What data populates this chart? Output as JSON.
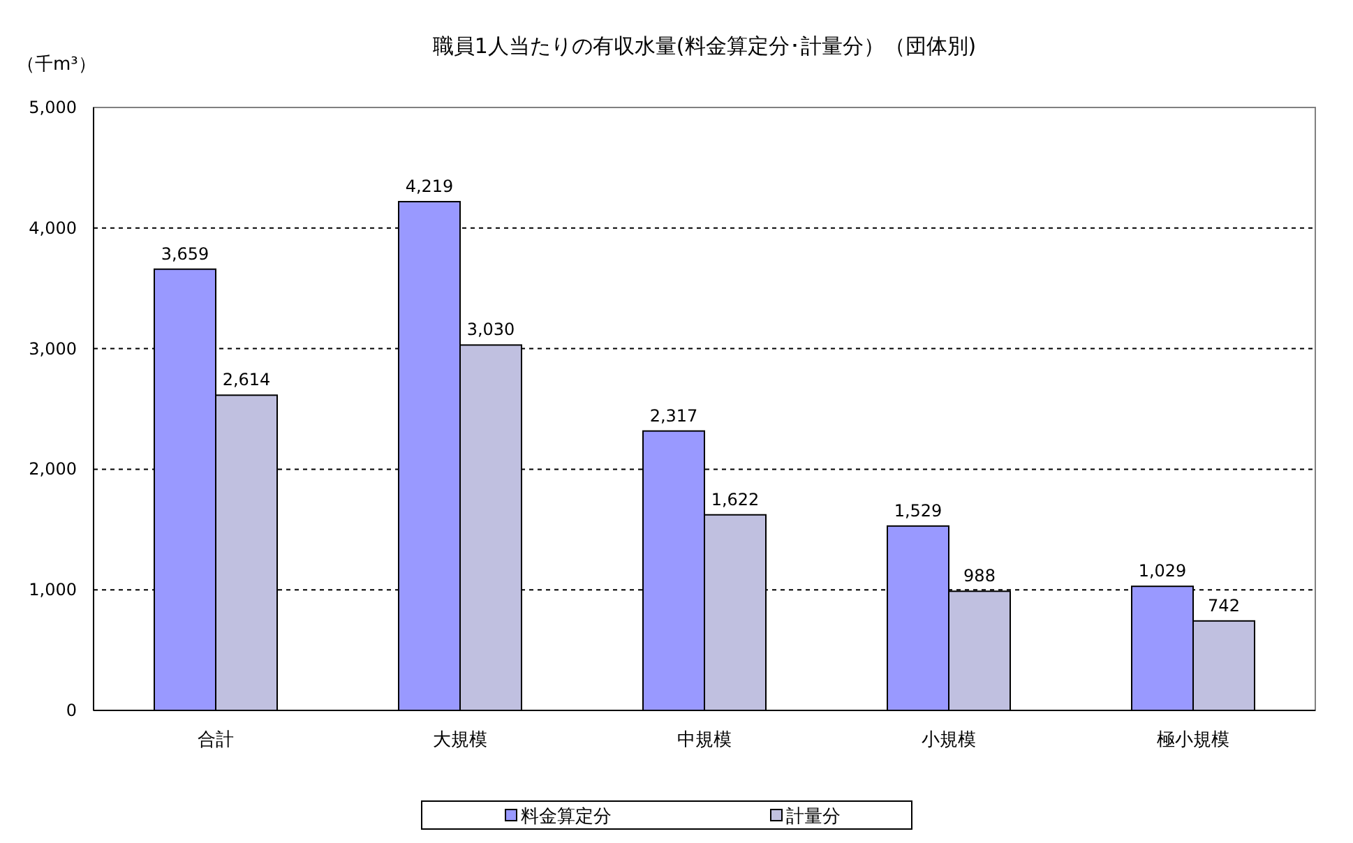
{
  "chart_data": {
    "type": "bar",
    "title": "職員1人当たりの有収水量(料金算定分･計量分）（団体別)",
    "ylabel": "（千m³）",
    "categories": [
      "合計",
      "大規模",
      "中規模",
      "小規模",
      "極小規模"
    ],
    "series": [
      {
        "name": "料金算定分",
        "color": "#9999ff",
        "values": [
          3659,
          4219,
          2317,
          1529,
          1029
        ],
        "value_labels": [
          "3,659",
          "4,219",
          "2,317",
          "1,529",
          "1,029"
        ]
      },
      {
        "name": "計量分",
        "color": "#c0c0e0",
        "values": [
          2614,
          3030,
          1622,
          988,
          742
        ],
        "value_labels": [
          "2,614",
          "3,030",
          "1,622",
          "988",
          "742"
        ]
      }
    ],
    "ylim": [
      0,
      5000
    ],
    "yticks": [
      {
        "value": 0,
        "label": "0"
      },
      {
        "value": 1000,
        "label": "1,000"
      },
      {
        "value": 2000,
        "label": "2,000"
      },
      {
        "value": 3000,
        "label": "3,000"
      },
      {
        "value": 4000,
        "label": "4,000"
      },
      {
        "value": 5000,
        "label": "5,000"
      }
    ],
    "grid": "y",
    "legend": "bottom"
  }
}
